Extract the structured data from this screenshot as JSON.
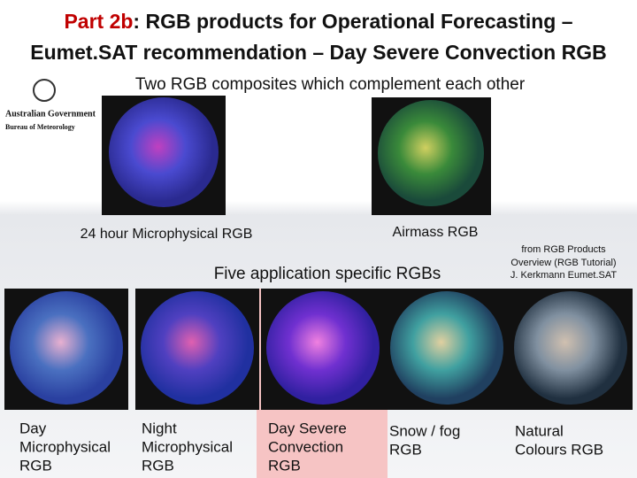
{
  "title": {
    "prefix": "Part 2b",
    "line1_rest": ": RGB products for Operational Forecasting –",
    "line2": "Eumet.SAT recommendation – Day Severe Convection RGB"
  },
  "subtitle": "Two RGB composites which complement each other",
  "logo": {
    "line1": "Australian Government",
    "line2": "Bureau of Meteorology"
  },
  "top_images": [
    {
      "caption": "24 hour Microphysical RGB"
    },
    {
      "caption": "Airmass RGB"
    }
  ],
  "section_label": "Five application specific RGBs",
  "source_note": [
    "from RGB Products",
    "Overview (RGB Tutorial)",
    "J. Kerkmann Eumet.SAT"
  ],
  "bottom_images": [
    {
      "caption": [
        "Day",
        "Microphysical",
        "RGB"
      ]
    },
    {
      "caption": [
        "Night",
        "Microphysical",
        "RGB"
      ]
    },
    {
      "caption": [
        "Day Severe",
        "Convection",
        "RGB"
      ]
    },
    {
      "caption": [
        "Snow / fog",
        "RGB"
      ]
    },
    {
      "caption": [
        "Natural",
        "Colours RGB"
      ]
    }
  ]
}
